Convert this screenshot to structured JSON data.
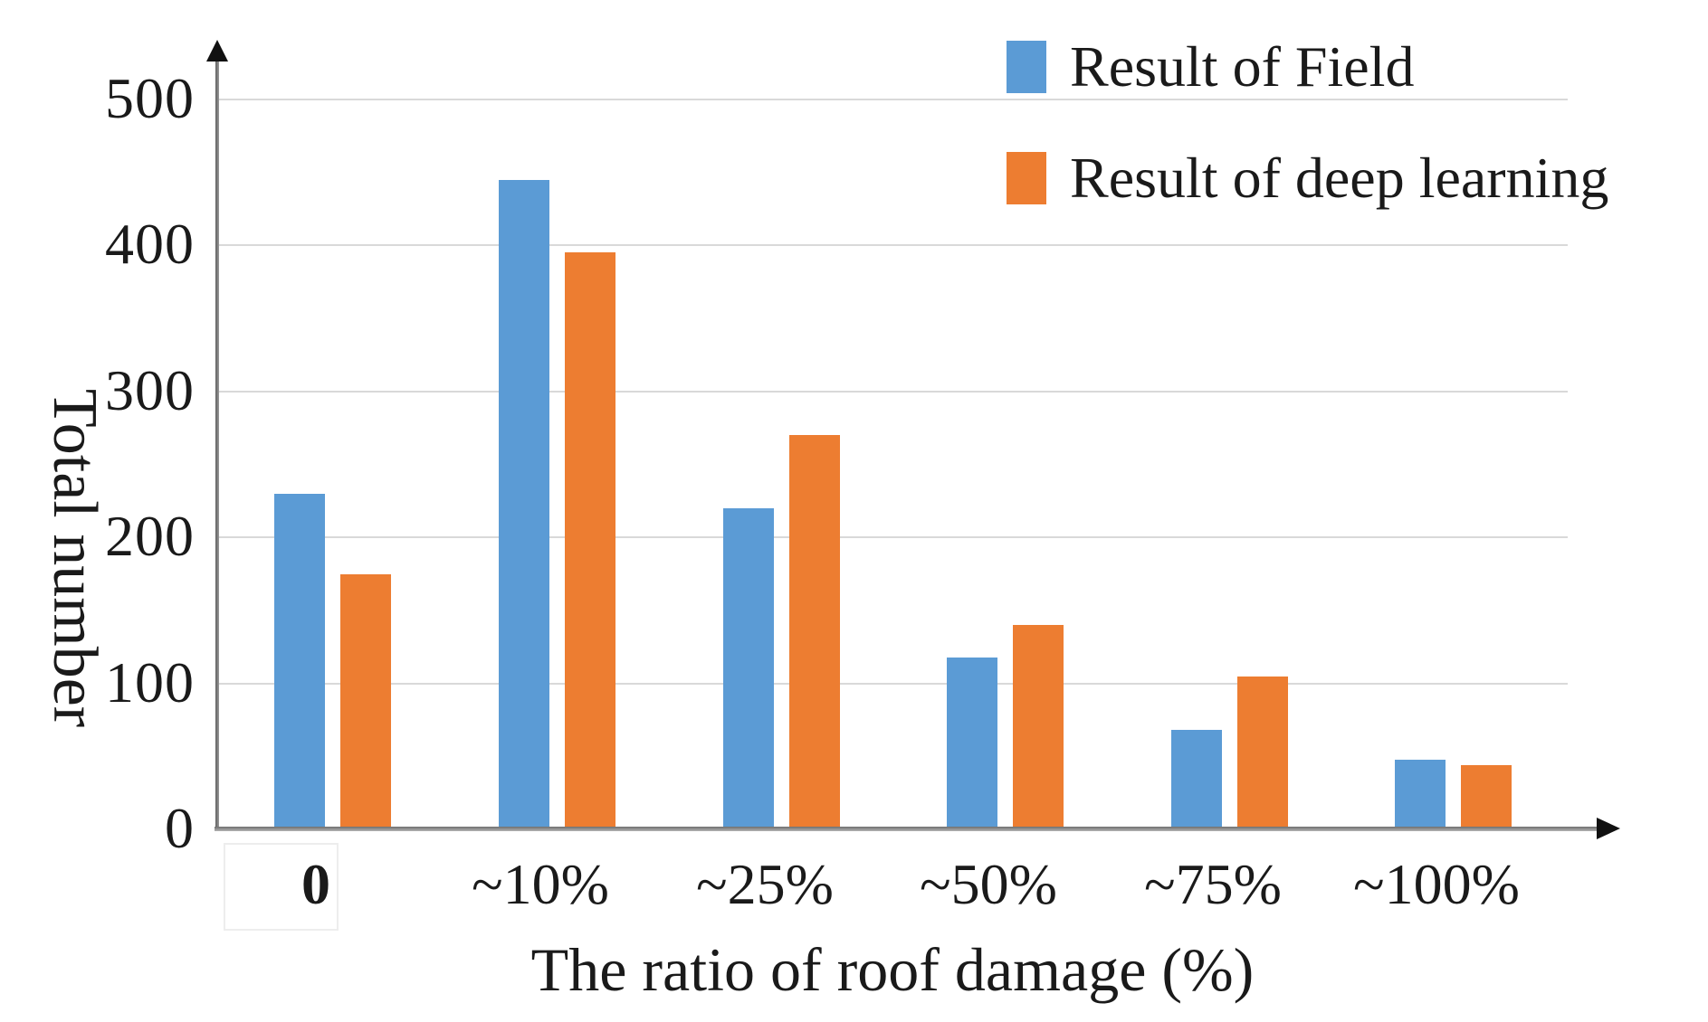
{
  "chart_data": {
    "type": "bar",
    "title": "",
    "categories": [
      "0",
      "~10%",
      "~25%",
      "~50%",
      "~75%",
      "~100%"
    ],
    "series": [
      {
        "name": "Result of Field",
        "color": "#5B9BD5",
        "values": [
          230,
          445,
          220,
          118,
          68,
          48
        ]
      },
      {
        "name": "Result of deep learning",
        "color": "#ED7D31",
        "values": [
          175,
          395,
          270,
          140,
          105,
          44
        ]
      }
    ],
    "xlabel": "The ratio of roof damage (%)",
    "ylabel": "Total number",
    "ylim": [
      0,
      500
    ],
    "yticks": [
      0,
      100,
      200,
      300,
      400,
      500
    ],
    "grid": "horizontal",
    "legend_position": "top-right",
    "colors": {
      "gridline": "#d9d9d9",
      "axis": "#6e6e6e",
      "text": "#1a1a1a"
    }
  }
}
